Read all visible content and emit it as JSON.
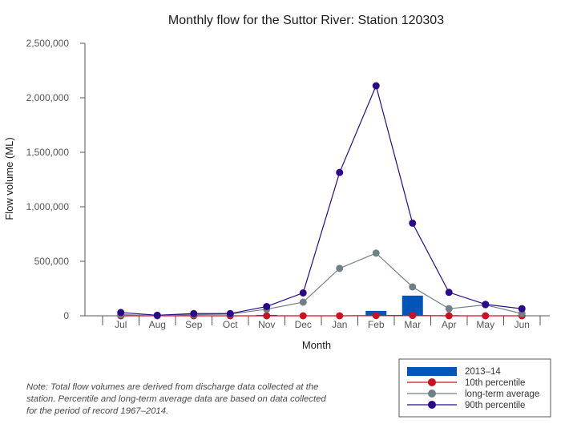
{
  "chart_data": {
    "type": "bar",
    "title": "Monthly flow for the Suttor River: Station 120303",
    "xlabel": "Month",
    "ylabel": "Flow volume (ML)",
    "ylim": [
      0,
      2500000
    ],
    "yticks": [
      0,
      500000,
      1000000,
      1500000,
      2000000,
      2500000
    ],
    "ytick_labels": [
      "0",
      "500,000",
      "1,000,000",
      "1,500,000",
      "2,000,000",
      "2,500,000"
    ],
    "categories": [
      "Jul",
      "Aug",
      "Sep",
      "Oct",
      "Nov",
      "Dec",
      "Jan",
      "Feb",
      "Mar",
      "Apr",
      "May",
      "Jun"
    ],
    "bars": {
      "name": "2013–14",
      "color": "#0055b8",
      "values": [
        0,
        0,
        0,
        0,
        8000,
        0,
        0,
        45000,
        185000,
        5000,
        0,
        0
      ]
    },
    "series": [
      {
        "name": "10th percentile",
        "type": "line",
        "color": "#cc1122",
        "values": [
          0,
          0,
          0,
          0,
          0,
          0,
          0,
          2000,
          3000,
          0,
          0,
          0
        ]
      },
      {
        "name": "long-term average",
        "type": "line",
        "color": "#6f8087",
        "values": [
          10000,
          2000,
          10000,
          15000,
          60000,
          125000,
          435000,
          575000,
          265000,
          65000,
          100000,
          20000
        ]
      },
      {
        "name": "90th percentile",
        "type": "line",
        "color": "#2a0a8a",
        "values": [
          30000,
          5000,
          20000,
          20000,
          85000,
          210000,
          1315000,
          2110000,
          850000,
          215000,
          105000,
          65000
        ]
      }
    ],
    "legend_position": "bottom-right",
    "grid": false
  },
  "note": "Note: Total flow volumes are derived from discharge data collected at the station. Percentile and long-term average data are based on data collected for the period of record 1967–2014."
}
